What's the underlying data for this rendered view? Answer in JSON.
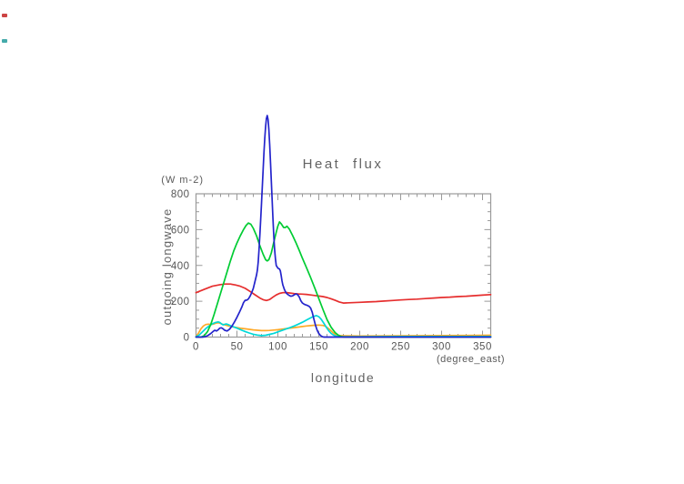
{
  "page": {
    "background": "#ffffff"
  },
  "artifacts": {
    "red_mark_color": "#cc4444",
    "teal_mark_color": "#44aaaa"
  },
  "chart_data": {
    "type": "line",
    "title": "Heat flux",
    "y_unit": "(W m-2)",
    "ylabel": "outgoing longwave",
    "xlabel": "longitude",
    "x_unit": "(degree_east)",
    "xlim": [
      0,
      360
    ],
    "ylim": [
      0,
      800
    ],
    "x_major_ticks": [
      0,
      50,
      100,
      150,
      200,
      250,
      300,
      350
    ],
    "x_minor_step": 10,
    "y_major_ticks": [
      0,
      200,
      400,
      600,
      800
    ],
    "y_minor_step": 50,
    "grid": false,
    "legend": null,
    "clip_series": false,
    "axis_color": "#9a9a9a",
    "tick_label_color": "#555555",
    "series": [
      {
        "name": "red",
        "color": "#e62e2e",
        "points": [
          [
            0,
            248
          ],
          [
            10,
            266
          ],
          [
            20,
            284
          ],
          [
            30,
            293
          ],
          [
            36,
            296
          ],
          [
            42,
            296
          ],
          [
            48,
            291
          ],
          [
            54,
            284
          ],
          [
            60,
            272
          ],
          [
            66,
            255
          ],
          [
            72,
            236
          ],
          [
            78,
            218
          ],
          [
            82,
            209
          ],
          [
            86,
            204
          ],
          [
            90,
            210
          ],
          [
            94,
            223
          ],
          [
            98,
            235
          ],
          [
            102,
            244
          ],
          [
            106,
            248
          ],
          [
            110,
            249
          ],
          [
            115,
            246
          ],
          [
            120,
            243
          ],
          [
            125,
            241
          ],
          [
            130,
            240
          ],
          [
            135,
            238
          ],
          [
            140,
            235
          ],
          [
            145,
            232
          ],
          [
            150,
            229
          ],
          [
            155,
            226
          ],
          [
            160,
            221
          ],
          [
            165,
            214
          ],
          [
            170,
            205
          ],
          [
            175,
            196
          ],
          [
            180,
            190
          ],
          [
            190,
            192
          ],
          [
            200,
            194
          ],
          [
            210,
            196
          ],
          [
            220,
            198
          ],
          [
            230,
            201
          ],
          [
            240,
            204
          ],
          [
            250,
            207
          ],
          [
            260,
            210
          ],
          [
            270,
            212
          ],
          [
            280,
            215
          ],
          [
            290,
            218
          ],
          [
            300,
            221
          ],
          [
            310,
            223
          ],
          [
            320,
            226
          ],
          [
            330,
            228
          ],
          [
            340,
            231
          ],
          [
            350,
            234
          ],
          [
            360,
            237
          ]
        ]
      },
      {
        "name": "orange",
        "color": "#ffa928",
        "points": [
          [
            0,
            2
          ],
          [
            3,
            22
          ],
          [
            6,
            46
          ],
          [
            9,
            62
          ],
          [
            12,
            70
          ],
          [
            15,
            72
          ],
          [
            18,
            70
          ],
          [
            21,
            72
          ],
          [
            24,
            77
          ],
          [
            27,
            80
          ],
          [
            29,
            78
          ],
          [
            32,
            72
          ],
          [
            35,
            68
          ],
          [
            40,
            62
          ],
          [
            45,
            57
          ],
          [
            50,
            53
          ],
          [
            55,
            49
          ],
          [
            60,
            46
          ],
          [
            65,
            43
          ],
          [
            70,
            40
          ],
          [
            75,
            38
          ],
          [
            80,
            36
          ],
          [
            85,
            36
          ],
          [
            90,
            37
          ],
          [
            95,
            39
          ],
          [
            100,
            41
          ],
          [
            105,
            44
          ],
          [
            110,
            47
          ],
          [
            115,
            50
          ],
          [
            120,
            53
          ],
          [
            125,
            56
          ],
          [
            130,
            59
          ],
          [
            135,
            62
          ],
          [
            140,
            64
          ],
          [
            145,
            66
          ],
          [
            150,
            67
          ],
          [
            155,
            65
          ],
          [
            158,
            61
          ],
          [
            161,
            51
          ],
          [
            164,
            39
          ],
          [
            167,
            26
          ],
          [
            170,
            16
          ],
          [
            173,
            10
          ],
          [
            176,
            8
          ],
          [
            180,
            7
          ],
          [
            200,
            6
          ],
          [
            250,
            7
          ],
          [
            300,
            8
          ],
          [
            330,
            9
          ],
          [
            360,
            10
          ]
        ]
      },
      {
        "name": "cyan",
        "color": "#00d8d8",
        "points": [
          [
            0,
            2
          ],
          [
            4,
            12
          ],
          [
            8,
            30
          ],
          [
            12,
            48
          ],
          [
            16,
            62
          ],
          [
            20,
            74
          ],
          [
            24,
            82
          ],
          [
            27,
            85
          ],
          [
            29,
            82
          ],
          [
            31,
            74
          ],
          [
            33,
            68
          ],
          [
            35,
            71
          ],
          [
            37,
            73
          ],
          [
            39,
            70
          ],
          [
            42,
            64
          ],
          [
            46,
            57
          ],
          [
            50,
            50
          ],
          [
            55,
            40
          ],
          [
            60,
            31
          ],
          [
            65,
            23
          ],
          [
            70,
            16
          ],
          [
            75,
            11
          ],
          [
            80,
            8
          ],
          [
            85,
            10
          ],
          [
            90,
            15
          ],
          [
            95,
            21
          ],
          [
            100,
            29
          ],
          [
            105,
            37
          ],
          [
            110,
            45
          ],
          [
            115,
            53
          ],
          [
            120,
            62
          ],
          [
            125,
            72
          ],
          [
            130,
            83
          ],
          [
            135,
            95
          ],
          [
            140,
            107
          ],
          [
            144,
            116
          ],
          [
            147,
            120
          ],
          [
            150,
            114
          ],
          [
            153,
            99
          ],
          [
            156,
            78
          ],
          [
            159,
            56
          ],
          [
            162,
            36
          ],
          [
            165,
            21
          ],
          [
            168,
            11
          ],
          [
            171,
            5
          ],
          [
            175,
            3
          ],
          [
            180,
            2
          ],
          [
            200,
            2
          ],
          [
            250,
            3
          ],
          [
            300,
            3
          ],
          [
            360,
            3
          ]
        ]
      },
      {
        "name": "green",
        "color": "#00cc33",
        "points": [
          [
            0,
            0
          ],
          [
            6,
            0
          ],
          [
            10,
            8
          ],
          [
            14,
            30
          ],
          [
            18,
            70
          ],
          [
            22,
            125
          ],
          [
            26,
            185
          ],
          [
            30,
            245
          ],
          [
            34,
            305
          ],
          [
            38,
            365
          ],
          [
            42,
            425
          ],
          [
            46,
            480
          ],
          [
            50,
            525
          ],
          [
            54,
            565
          ],
          [
            58,
            600
          ],
          [
            61,
            622
          ],
          [
            64,
            637
          ],
          [
            67,
            630
          ],
          [
            70,
            607
          ],
          [
            74,
            565
          ],
          [
            78,
            510
          ],
          [
            82,
            462
          ],
          [
            85,
            432
          ],
          [
            87,
            425
          ],
          [
            89,
            432
          ],
          [
            92,
            470
          ],
          [
            95,
            530
          ],
          [
            98,
            585
          ],
          [
            100,
            620
          ],
          [
            102,
            643
          ],
          [
            104,
            633
          ],
          [
            107,
            612
          ],
          [
            109,
            611
          ],
          [
            111,
            619
          ],
          [
            114,
            603
          ],
          [
            118,
            567
          ],
          [
            122,
            528
          ],
          [
            126,
            485
          ],
          [
            130,
            440
          ],
          [
            135,
            387
          ],
          [
            140,
            332
          ],
          [
            145,
            275
          ],
          [
            150,
            215
          ],
          [
            155,
            155
          ],
          [
            160,
            98
          ],
          [
            165,
            55
          ],
          [
            170,
            25
          ],
          [
            174,
            10
          ],
          [
            178,
            2
          ],
          [
            182,
            0
          ],
          [
            200,
            0
          ],
          [
            250,
            0
          ],
          [
            300,
            0
          ],
          [
            360,
            0
          ]
        ]
      },
      {
        "name": "blue",
        "color": "#2424cc",
        "points": [
          [
            0,
            0
          ],
          [
            8,
            0
          ],
          [
            12,
            3
          ],
          [
            15,
            10
          ],
          [
            18,
            20
          ],
          [
            21,
            32
          ],
          [
            23,
            38
          ],
          [
            25,
            34
          ],
          [
            27,
            40
          ],
          [
            29,
            50
          ],
          [
            31,
            52
          ],
          [
            33,
            46
          ],
          [
            35,
            38
          ],
          [
            38,
            34
          ],
          [
            41,
            44
          ],
          [
            44,
            62
          ],
          [
            47,
            85
          ],
          [
            50,
            110
          ],
          [
            53,
            138
          ],
          [
            56,
            168
          ],
          [
            58,
            192
          ],
          [
            60,
            205
          ],
          [
            62,
            206
          ],
          [
            64,
            213
          ],
          [
            66,
            228
          ],
          [
            68,
            248
          ],
          [
            70,
            272
          ],
          [
            72,
            310
          ],
          [
            74,
            348
          ],
          [
            75,
            375
          ],
          [
            76,
            420
          ],
          [
            77,
            490
          ],
          [
            78,
            570
          ],
          [
            79,
            655
          ],
          [
            80,
            745
          ],
          [
            81,
            840
          ],
          [
            82,
            935
          ],
          [
            83,
            1030
          ],
          [
            84,
            1110
          ],
          [
            85,
            1175
          ],
          [
            86,
            1220
          ],
          [
            87,
            1237
          ],
          [
            88,
            1215
          ],
          [
            89,
            1158
          ],
          [
            90,
            1075
          ],
          [
            91,
            975
          ],
          [
            92,
            870
          ],
          [
            93,
            765
          ],
          [
            94,
            660
          ],
          [
            95,
            565
          ],
          [
            96,
            490
          ],
          [
            97,
            438
          ],
          [
            98,
            400
          ],
          [
            100,
            385
          ],
          [
            102,
            380
          ],
          [
            103,
            370
          ],
          [
            104,
            345
          ],
          [
            105,
            315
          ],
          [
            106,
            292
          ],
          [
            108,
            265
          ],
          [
            110,
            247
          ],
          [
            112,
            238
          ],
          [
            114,
            232
          ],
          [
            116,
            228
          ],
          [
            118,
            230
          ],
          [
            120,
            236
          ],
          [
            122,
            241
          ],
          [
            124,
            237
          ],
          [
            126,
            225
          ],
          [
            128,
            203
          ],
          [
            130,
            190
          ],
          [
            132,
            184
          ],
          [
            134,
            180
          ],
          [
            136,
            177
          ],
          [
            138,
            172
          ],
          [
            140,
            162
          ],
          [
            142,
            138
          ],
          [
            144,
            100
          ],
          [
            146,
            65
          ],
          [
            148,
            38
          ],
          [
            150,
            20
          ],
          [
            152,
            9
          ],
          [
            154,
            3
          ],
          [
            156,
            0
          ],
          [
            160,
            0
          ],
          [
            180,
            0
          ],
          [
            200,
            0
          ],
          [
            250,
            0
          ],
          [
            300,
            0
          ],
          [
            360,
            0
          ]
        ]
      }
    ]
  }
}
